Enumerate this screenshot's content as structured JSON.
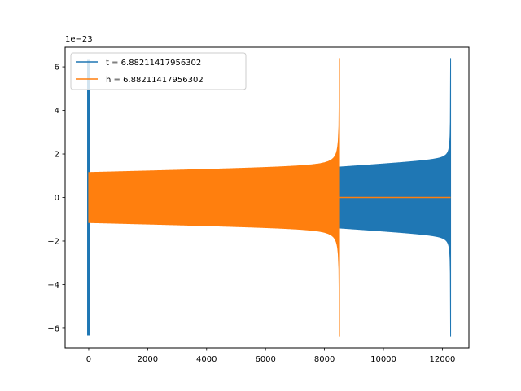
{
  "chart_data": {
    "type": "line",
    "title": "",
    "xlabel": "",
    "ylabel": "",
    "y_scale_label": "1e−23",
    "xlim": [
      -800,
      12900
    ],
    "ylim": [
      -6.9,
      6.9
    ],
    "x_ticks": [
      0,
      2000,
      4000,
      6000,
      8000,
      10000,
      12000
    ],
    "x_tick_labels": [
      "0",
      "2000",
      "4000",
      "6000",
      "8000",
      "10000",
      "12000"
    ],
    "y_ticks": [
      -6,
      -4,
      -2,
      0,
      2,
      4,
      6
    ],
    "y_tick_labels": [
      "−6",
      "−4",
      "−2",
      "0",
      "2",
      "4",
      "6"
    ],
    "grid": false,
    "legend_position": "upper-left",
    "series": [
      {
        "name": "t = 6.88211417956302",
        "color": "#1f77b4",
        "x_end": 12280,
        "segments": [
          {
            "x_start": -40,
            "x_end": 20,
            "amp_start": 6.3,
            "amp_end": 6.3
          },
          {
            "x_start": 8500,
            "x_end": 12280,
            "amp_start": 1.4,
            "amp_end": 6.4
          }
        ]
      },
      {
        "name": "h = 6.88211417956302",
        "color": "#ff7f0e",
        "x_end": 12280,
        "segments": [
          {
            "x_start": 0,
            "x_end": 8510,
            "amp_start": 1.15,
            "amp_end": 6.4
          }
        ]
      }
    ]
  }
}
